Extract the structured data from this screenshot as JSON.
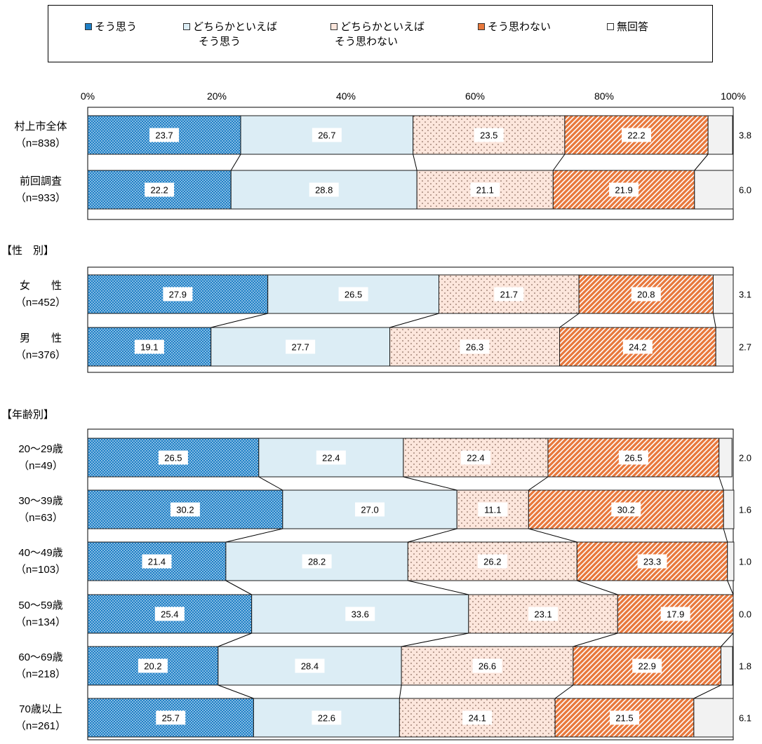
{
  "legend": [
    {
      "line1": "そう思う",
      "line2": ""
    },
    {
      "line1": "どちらかといえば",
      "line2": "そう思う"
    },
    {
      "line1": "どちらかといえば",
      "line2": "そう思わない"
    },
    {
      "line1": "そう思わない",
      "line2": ""
    },
    {
      "line1": "無回答",
      "line2": ""
    }
  ],
  "colors": {
    "soumou": "#1e7fc6",
    "dochira_sou": "#dcedf5",
    "dochira_sowanai": "#fce6dc",
    "sowanai": "#e8783c",
    "mukaitou": "#f2f2f2"
  },
  "chart_data": {
    "type": "bar",
    "orientation": "horizontal-stacked-100",
    "x_ticks": [
      "0%",
      "20%",
      "40%",
      "60%",
      "80%",
      "100%"
    ],
    "xlim": [
      0,
      100
    ],
    "series_names": [
      "そう思う",
      "どちらかといえばそう思う",
      "どちらかといえばそう思わない",
      "そう思わない",
      "無回答"
    ],
    "groups": [
      {
        "label": "",
        "rows": [
          {
            "label1": "村上市全体",
            "label2": "（n=838）",
            "values": [
              23.7,
              26.7,
              23.5,
              22.2,
              3.8
            ]
          },
          {
            "label1": "前回調査",
            "label2": "（n=933）",
            "values": [
              22.2,
              28.8,
              21.1,
              21.9,
              6.0
            ]
          }
        ]
      },
      {
        "label": "【性　別】",
        "rows": [
          {
            "label1": "女　　性",
            "label2": "（n=452）",
            "values": [
              27.9,
              26.5,
              21.7,
              20.8,
              3.1
            ]
          },
          {
            "label1": "男　　性",
            "label2": "（n=376）",
            "values": [
              19.1,
              27.7,
              26.3,
              24.2,
              2.7
            ]
          }
        ]
      },
      {
        "label": "【年齢別】",
        "rows": [
          {
            "label1": "20～29歳",
            "label2": "（n=49）",
            "values": [
              26.5,
              22.4,
              22.4,
              26.5,
              2.0
            ]
          },
          {
            "label1": "30～39歳",
            "label2": "（n=63）",
            "values": [
              30.2,
              27.0,
              11.1,
              30.2,
              1.6
            ]
          },
          {
            "label1": "40～49歳",
            "label2": "（n=103）",
            "values": [
              21.4,
              28.2,
              26.2,
              23.3,
              1.0
            ]
          },
          {
            "label1": "50～59歳",
            "label2": "（n=134）",
            "values": [
              25.4,
              33.6,
              23.1,
              17.9,
              0.0
            ]
          },
          {
            "label1": "60～69歳",
            "label2": "（n=218）",
            "values": [
              20.2,
              28.4,
              26.6,
              22.9,
              1.8
            ]
          },
          {
            "label1": "70歳以上",
            "label2": "（n=261）",
            "values": [
              25.7,
              22.6,
              24.1,
              21.5,
              6.1
            ]
          }
        ]
      }
    ]
  }
}
